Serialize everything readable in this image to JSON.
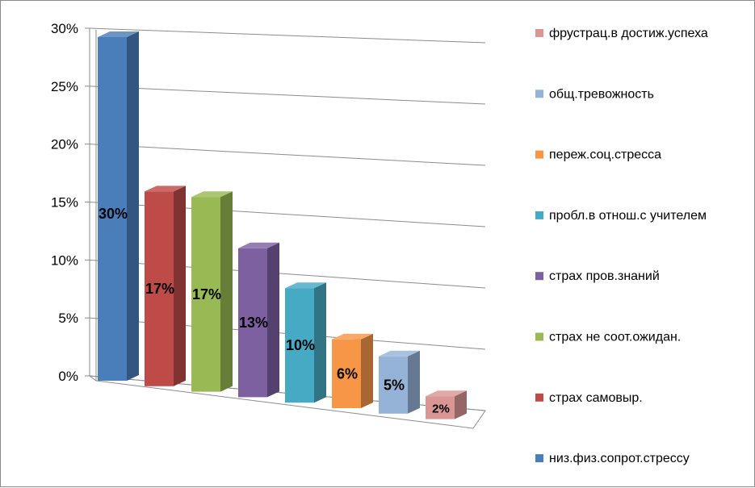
{
  "chart_data": {
    "type": "bar",
    "title": "",
    "xlabel": "",
    "ylabel": "",
    "ylim": [
      0,
      30
    ],
    "y_ticks": [
      "0%",
      "5%",
      "10%",
      "15%",
      "20%",
      "25%",
      "30%"
    ],
    "y_tick_values": [
      0,
      5,
      10,
      15,
      20,
      25,
      30
    ],
    "grid": true,
    "legend_position": "right",
    "series": [
      {
        "name": "низ.физ.сопрот.стрессу",
        "value": 30,
        "label": "30%",
        "color": "#4a7ebb"
      },
      {
        "name": "страх самовыр.",
        "value": 17,
        "label": "17%",
        "color": "#be4b48"
      },
      {
        "name": "страх не соот.ожидан.",
        "value": 17,
        "label": "17%",
        "color": "#98b954"
      },
      {
        "name": "страх пров.знаний",
        "value": 13,
        "label": "13%",
        "color": "#7d60a0"
      },
      {
        "name": "пробл.в отнош.с учителем",
        "value": 10,
        "label": "10%",
        "color": "#46aac5"
      },
      {
        "name": "переж.соц.стресса",
        "value": 6,
        "label": "6%",
        "color": "#f79646"
      },
      {
        "name": "общ.тревожность",
        "value": 5,
        "label": "5%",
        "color": "#95b3d7"
      },
      {
        "name": "фрустрац.в достиж.успеха",
        "value": 2,
        "label": "2%",
        "color": "#d99694"
      }
    ]
  }
}
